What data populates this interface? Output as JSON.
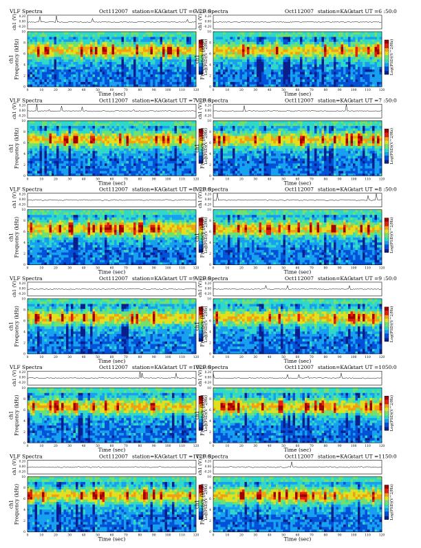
{
  "chart_data": [
    {
      "type": "heatmap",
      "header": {
        "title": "VLF Spectra",
        "date": "Oct112007",
        "station": "station=KAG",
        "start": "start  UT =6 :20:0"
      },
      "xlabel": "Time  (sec)",
      "ylabel": "ch1\nFrequency  (kHz)",
      "top_ylabel": "ch1 (V)",
      "colorbar_label": "Log(PSD)(V^2/Hz)",
      "x_ticks": [
        "0",
        "10",
        "20",
        "30",
        "40",
        "50",
        "60",
        "70",
        "80",
        "90",
        "100",
        "110",
        "120"
      ],
      "y_ticks": [
        "0",
        "2",
        "4",
        "6",
        "8",
        "10"
      ],
      "top_y_ticks": [
        "0.20",
        "0.00",
        "-0.20"
      ],
      "xlim": [
        0,
        120
      ],
      "ylim": [
        0,
        10
      ]
    },
    {
      "type": "heatmap",
      "header": {
        "title": "VLF Spectra",
        "date": "Oct112007",
        "station": "station=KAG",
        "start": "start  UT =6 :50:0"
      },
      "xlabel": "Time  (sec)",
      "ylabel": "ch1\nFrequency  (kHz)",
      "top_ylabel": "ch1 (V)",
      "colorbar_label": "Log(PSD)(V^2/Hz)",
      "x_ticks": [
        "0",
        "10",
        "20",
        "30",
        "40",
        "50",
        "60",
        "70",
        "80",
        "90",
        "100",
        "110",
        "120"
      ],
      "y_ticks": [
        "0",
        "2",
        "4",
        "6",
        "8",
        "10"
      ],
      "top_y_ticks": [
        "0.20",
        "0.00",
        "-0.20"
      ],
      "xlim": [
        0,
        120
      ],
      "ylim": [
        0,
        10
      ]
    },
    {
      "type": "heatmap",
      "header": {
        "title": "VLF Spectra",
        "date": "Oct112007",
        "station": "station=KAG",
        "start": "start  UT =7 :20:0"
      },
      "xlabel": "Time  (sec)",
      "ylabel": "ch1\nFrequency  (kHz)",
      "top_ylabel": "ch1 (V)",
      "colorbar_label": "Log(PSD)(V^2/Hz)",
      "x_ticks": [
        "0",
        "10",
        "20",
        "30",
        "40",
        "50",
        "60",
        "70",
        "80",
        "90",
        "100",
        "110",
        "120"
      ],
      "y_ticks": [
        "0",
        "2",
        "4",
        "6",
        "8",
        "10"
      ],
      "top_y_ticks": [
        "0.20",
        "0.00",
        "-0.20"
      ],
      "xlim": [
        0,
        120
      ],
      "ylim": [
        0,
        10
      ]
    },
    {
      "type": "heatmap",
      "header": {
        "title": "VLF Spectra",
        "date": "Oct112007",
        "station": "station=KAG",
        "start": "start  UT =7 :50:0"
      },
      "xlabel": "Time  (sec)",
      "ylabel": "ch1\nFrequency  (kHz)",
      "top_ylabel": "ch1 (V)",
      "colorbar_label": "Log(PSD)(V^2/Hz)",
      "x_ticks": [
        "0",
        "10",
        "20",
        "30",
        "40",
        "50",
        "60",
        "70",
        "80",
        "90",
        "100",
        "110",
        "120"
      ],
      "y_ticks": [
        "0",
        "2",
        "4",
        "6",
        "8",
        "10"
      ],
      "top_y_ticks": [
        "0.20",
        "0.00",
        "-0.20"
      ],
      "xlim": [
        0,
        120
      ],
      "ylim": [
        0,
        10
      ]
    },
    {
      "type": "heatmap",
      "header": {
        "title": "VLF Spectra",
        "date": "Oct112007",
        "station": "station=KAG",
        "start": "start  UT =8 :20:0"
      },
      "xlabel": "Time  (sec)",
      "ylabel": "ch1\nFrequency  (kHz)",
      "top_ylabel": "ch1 (V)",
      "colorbar_label": "Log(PSD)(V^2/Hz)",
      "x_ticks": [
        "0",
        "10",
        "20",
        "30",
        "40",
        "50",
        "60",
        "70",
        "80",
        "90",
        "100",
        "110",
        "120"
      ],
      "y_ticks": [
        "0",
        "2",
        "4",
        "6",
        "8",
        "10"
      ],
      "top_y_ticks": [
        "0.20",
        "0.00",
        "-0.20"
      ],
      "xlim": [
        0,
        120
      ],
      "ylim": [
        0,
        10
      ]
    },
    {
      "type": "heatmap",
      "header": {
        "title": "VLF Spectra",
        "date": "Oct112007",
        "station": "station=KAG",
        "start": "start  UT =8 :50:0"
      },
      "xlabel": "Time  (sec)",
      "ylabel": "ch1\nFrequency  (kHz)",
      "top_ylabel": "ch1 (V)",
      "colorbar_label": "Log(PSD)(V^2/Hz)",
      "x_ticks": [
        "0",
        "10",
        "20",
        "30",
        "40",
        "50",
        "60",
        "70",
        "80",
        "90",
        "100",
        "110",
        "120"
      ],
      "y_ticks": [
        "0",
        "2",
        "4",
        "6",
        "8",
        "10"
      ],
      "top_y_ticks": [
        "0.20",
        "0.00",
        "-0.20"
      ],
      "xlim": [
        0,
        120
      ],
      "ylim": [
        0,
        10
      ]
    },
    {
      "type": "heatmap",
      "header": {
        "title": "VLF Spectra",
        "date": "Oct112007",
        "station": "station=KAG",
        "start": "start  UT =9 :20:0"
      },
      "xlabel": "Time  (sec)",
      "ylabel": "ch1\nFrequency  (kHz)",
      "top_ylabel": "ch1 (V)",
      "colorbar_label": "Log(PSD)(V^2/Hz)",
      "x_ticks": [
        "0",
        "10",
        "20",
        "30",
        "40",
        "50",
        "60",
        "70",
        "80",
        "90",
        "100",
        "110",
        "120"
      ],
      "y_ticks": [
        "0",
        "2",
        "4",
        "6",
        "8",
        "10"
      ],
      "top_y_ticks": [
        "0.20",
        "0.00",
        "-0.20"
      ],
      "xlim": [
        0,
        120
      ],
      "ylim": [
        0,
        10
      ]
    },
    {
      "type": "heatmap",
      "header": {
        "title": "VLF Spectra",
        "date": "Oct112007",
        "station": "station=KAG",
        "start": "start  UT =9 :50:0"
      },
      "xlabel": "Time  (sec)",
      "ylabel": "ch1\nFrequency  (kHz)",
      "top_ylabel": "ch1 (V)",
      "colorbar_label": "Log(PSD)(V^2/Hz)",
      "x_ticks": [
        "0",
        "10",
        "20",
        "30",
        "40",
        "50",
        "60",
        "70",
        "80",
        "90",
        "100",
        "110",
        "120"
      ],
      "y_ticks": [
        "0",
        "2",
        "4",
        "6",
        "8",
        "10"
      ],
      "top_y_ticks": [
        "0.20",
        "0.00",
        "-0.20"
      ],
      "xlim": [
        0,
        120
      ],
      "ylim": [
        0,
        10
      ]
    },
    {
      "type": "heatmap",
      "header": {
        "title": "VLF Spectra",
        "date": "Oct112007",
        "station": "station=KAG",
        "start": "start  UT =1020:0"
      },
      "xlabel": "Time  (sec)",
      "ylabel": "ch1\nFrequency  (kHz)",
      "top_ylabel": "ch1 (V)",
      "colorbar_label": "Log(PSD)(V^2/Hz)",
      "x_ticks": [
        "0",
        "10",
        "20",
        "30",
        "40",
        "50",
        "60",
        "70",
        "80",
        "90",
        "100",
        "110",
        "120"
      ],
      "y_ticks": [
        "0",
        "2",
        "4",
        "6",
        "8",
        "10"
      ],
      "top_y_ticks": [
        "0.20",
        "0.00",
        "-0.20"
      ],
      "xlim": [
        0,
        120
      ],
      "ylim": [
        0,
        10
      ]
    },
    {
      "type": "heatmap",
      "header": {
        "title": "VLF Spectra",
        "date": "Oct112007",
        "station": "station=KAG",
        "start": "start  UT =1050:0"
      },
      "xlabel": "Time  (sec)",
      "ylabel": "ch1\nFrequency  (kHz)",
      "top_ylabel": "ch1 (V)",
      "colorbar_label": "Log(PSD)(V^2/Hz)",
      "x_ticks": [
        "0",
        "10",
        "20",
        "30",
        "40",
        "50",
        "60",
        "70",
        "80",
        "90",
        "100",
        "110",
        "120"
      ],
      "y_ticks": [
        "0",
        "2",
        "4",
        "6",
        "8",
        "10"
      ],
      "top_y_ticks": [
        "0.20",
        "0.00",
        "-0.20"
      ],
      "xlim": [
        0,
        120
      ],
      "ylim": [
        0,
        10
      ]
    },
    {
      "type": "heatmap",
      "header": {
        "title": "VLF Spectra",
        "date": "Oct112007",
        "station": "station=KAG",
        "start": "start  UT =1120:0"
      },
      "xlabel": "Time  (sec)",
      "ylabel": "ch1\nFrequency  (kHz)",
      "top_ylabel": "ch1 (V)",
      "colorbar_label": "Log(PSD)(V^2/Hz)",
      "x_ticks": [
        "0",
        "10",
        "20",
        "30",
        "40",
        "50",
        "60",
        "70",
        "80",
        "90",
        "100",
        "110",
        "120"
      ],
      "y_ticks": [
        "0",
        "2",
        "4",
        "6",
        "8",
        "10"
      ],
      "top_y_ticks": [
        "0.20",
        "0.00",
        "-0.20"
      ],
      "xlim": [
        0,
        120
      ],
      "ylim": [
        0,
        10
      ]
    },
    {
      "type": "heatmap",
      "header": {
        "title": "VLF Spectra",
        "date": "Oct112007",
        "station": "station=KAG",
        "start": "start  UT =1150:0"
      },
      "xlabel": "Time  (sec)",
      "ylabel": "ch1\nFrequency  (kHz)",
      "top_ylabel": "ch1 (V)",
      "colorbar_label": "Log(PSD)(V^2/Hz)",
      "x_ticks": [
        "0",
        "10",
        "20",
        "30",
        "40",
        "50",
        "60",
        "70",
        "80",
        "90",
        "100",
        "110",
        "120"
      ],
      "y_ticks": [
        "0",
        "2",
        "4",
        "6",
        "8",
        "10"
      ],
      "top_y_ticks": [
        "0.20",
        "0.00",
        "-0.20"
      ],
      "xlim": [
        0,
        120
      ],
      "ylim": [
        0,
        10
      ]
    }
  ],
  "colors": {
    "colormap": [
      "#0a1e8c",
      "#0050d8",
      "#18a0f0",
      "#30d8c8",
      "#70e070",
      "#e0e020",
      "#f0a010",
      "#e02010",
      "#a00000"
    ],
    "text": "#000000",
    "axis": "#000000"
  }
}
